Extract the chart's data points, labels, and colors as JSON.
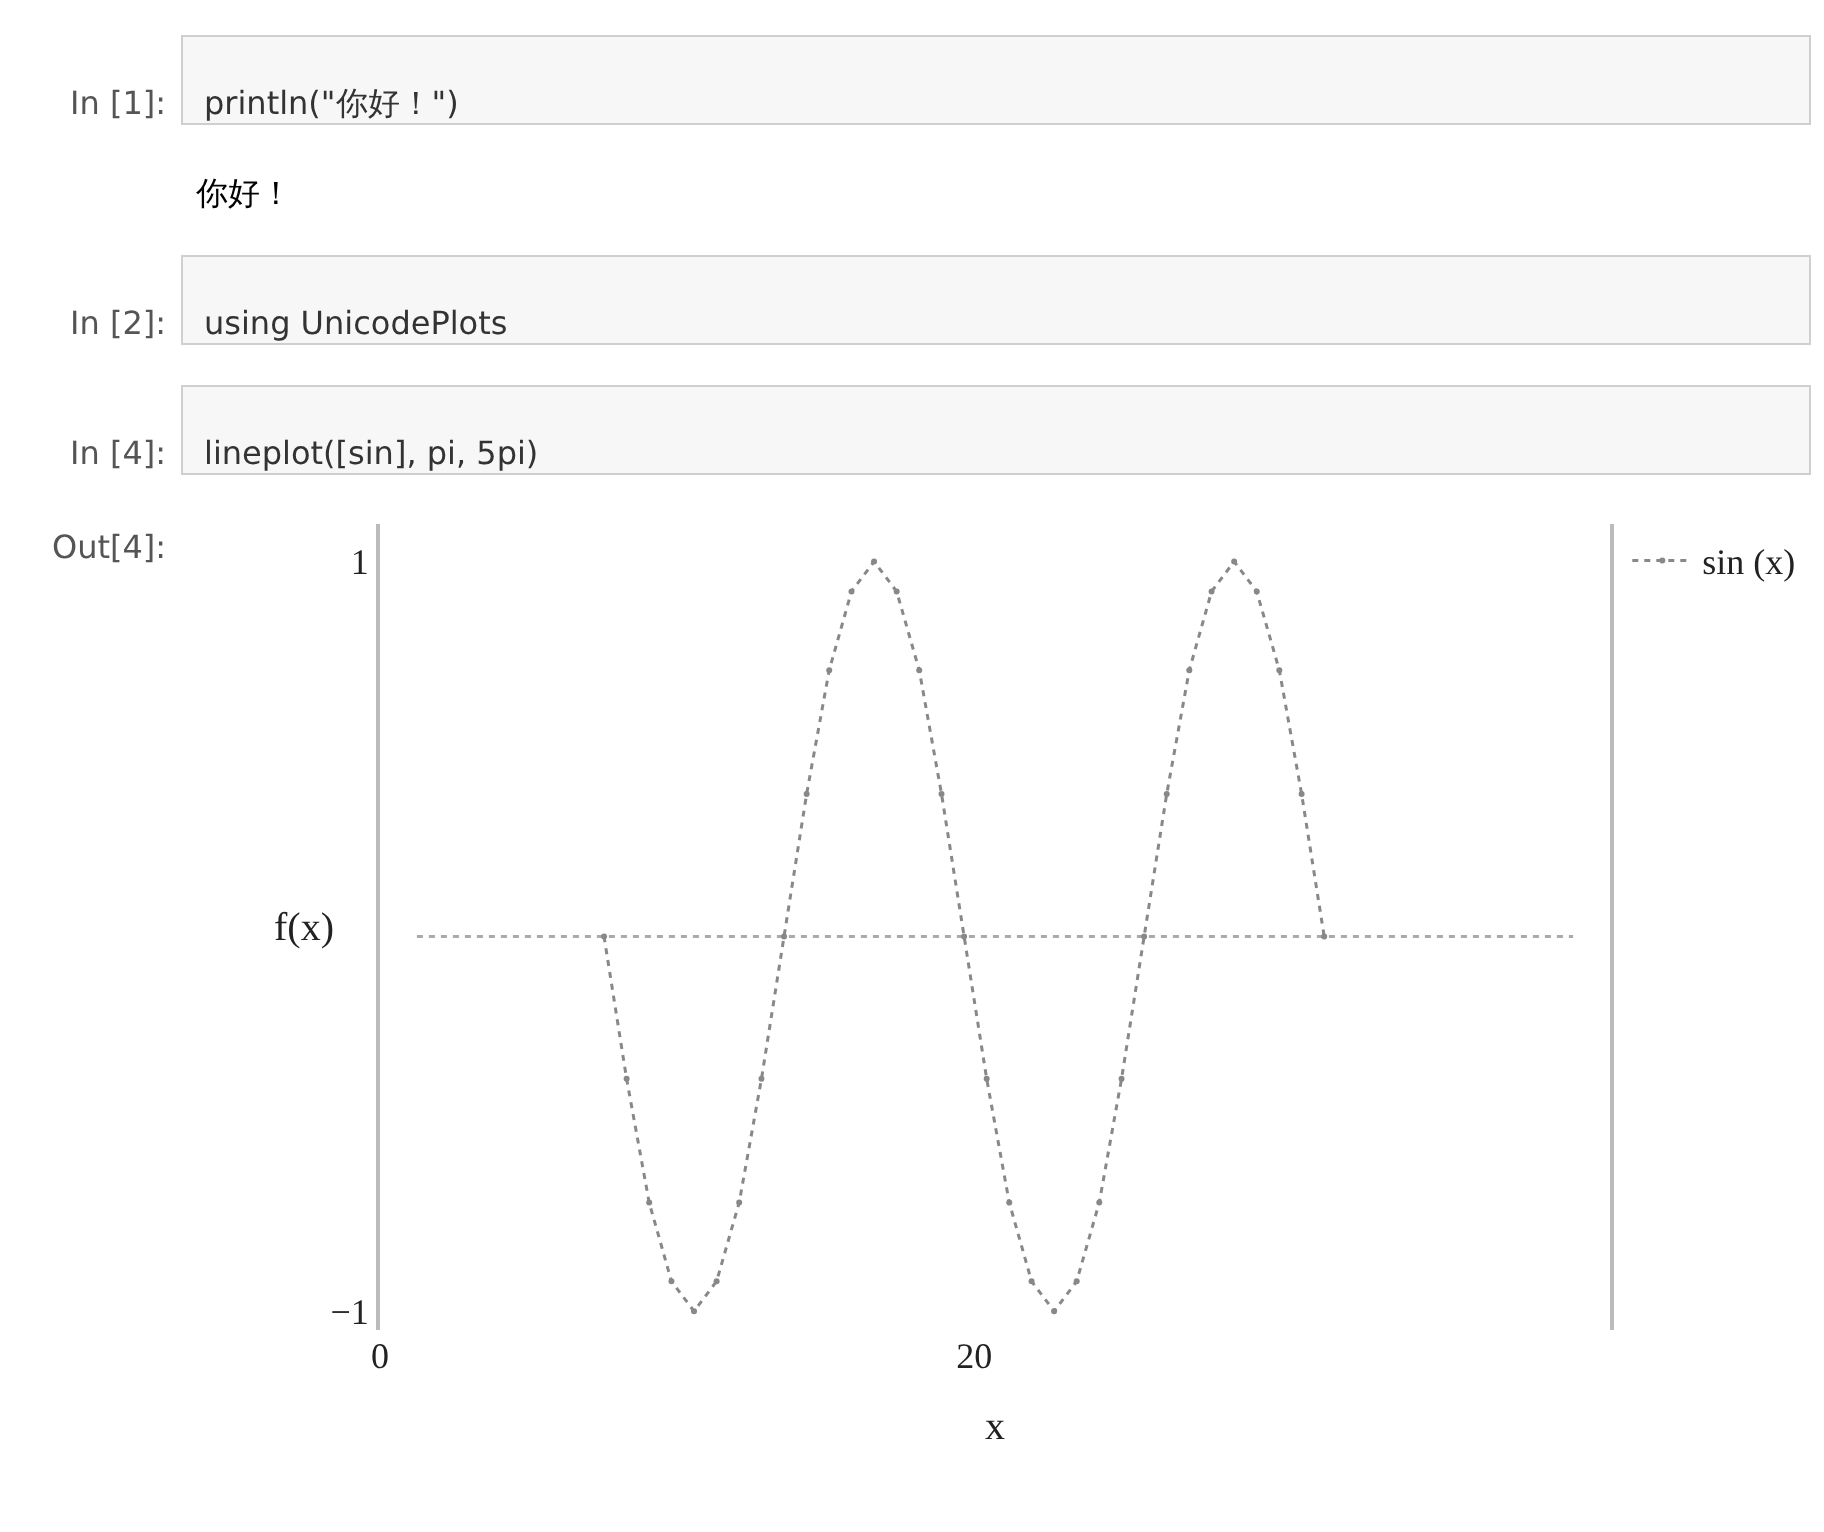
{
  "chart_data": {
    "type": "line",
    "xlabel": "x",
    "ylabel": "f(x)",
    "annotations": [
      "In [1]:",
      "println(\"你好！\")",
      "你好！",
      "In [2]:",
      "using UnicodePlots",
      "In [4]:",
      "lineplot([sin], pi, 5pi)",
      "Out[4]:"
    ],
    "x": [
      7.54,
      8.3,
      9.06,
      9.81,
      10.57,
      11.33,
      12.09,
      12.84,
      13.6,
      14.36,
      15.12,
      15.87,
      16.63,
      17.39,
      18.15,
      18.9,
      19.66,
      20.42,
      21.18,
      21.93,
      22.69,
      23.45,
      24.21,
      24.96,
      25.72,
      26.48,
      27.24,
      27.99,
      28.75,
      29.51,
      30.27,
      31.02,
      31.78
    ],
    "series": [
      {
        "name": "sin (x)",
        "color": "#888888",
        "values": [
          0,
          -0.38,
          -0.71,
          -0.92,
          -1,
          -0.92,
          -0.71,
          -0.38,
          0,
          0.38,
          0.71,
          0.92,
          1,
          0.92,
          0.71,
          0.38,
          0,
          -0.38,
          -0.71,
          -0.92,
          -1,
          -0.92,
          -0.71,
          -0.38,
          0,
          0.38,
          0.71,
          0.92,
          1,
          0.92,
          0.71,
          0.38,
          0
        ]
      }
    ],
    "xlim": [
      0,
      41.4
    ],
    "xticks": [
      0,
      20
    ],
    "ylim": [
      -1.05,
      1.1
    ],
    "yticks": [
      -1,
      1
    ],
    "ref_lines": [
      {
        "axis": "y",
        "value": 0,
        "color": "#aaaaaa",
        "line_style": "dotted"
      }
    ],
    "grid": false,
    "legend": "top right",
    "marker": "circle",
    "line_style": "dotted"
  }
}
